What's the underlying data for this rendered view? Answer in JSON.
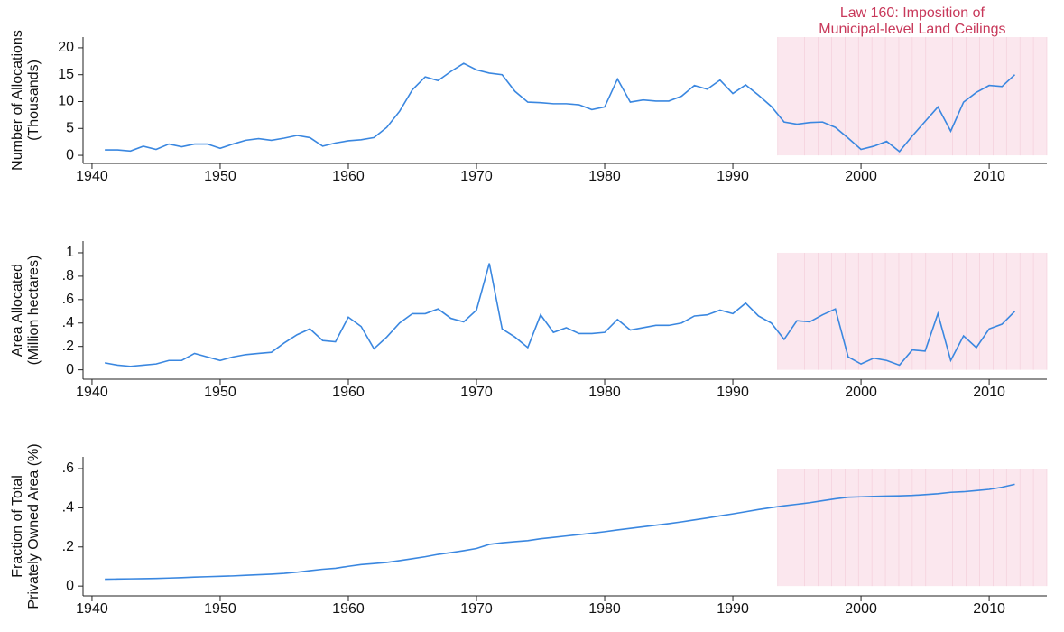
{
  "chart_data": [
    {
      "type": "line",
      "ylabel": [
        "Number of Allocations",
        "(Thousands)"
      ],
      "annotation": [
        "Law 160: Imposition of",
        "Municipal-level Land Ceilings"
      ],
      "x": [
        1941,
        1942,
        1943,
        1944,
        1945,
        1946,
        1947,
        1948,
        1949,
        1950,
        1951,
        1952,
        1953,
        1954,
        1955,
        1956,
        1957,
        1958,
        1959,
        1960,
        1961,
        1962,
        1963,
        1964,
        1965,
        1966,
        1967,
        1968,
        1969,
        1970,
        1971,
        1972,
        1973,
        1974,
        1975,
        1976,
        1977,
        1978,
        1979,
        1980,
        1981,
        1982,
        1983,
        1984,
        1985,
        1986,
        1987,
        1988,
        1989,
        1990,
        1991,
        1992,
        1993,
        1994,
        1995,
        1996,
        1997,
        1998,
        1999,
        2000,
        2001,
        2002,
        2003,
        2004,
        2005,
        2006,
        2007,
        2008,
        2009,
        2010,
        2011,
        2012
      ],
      "values": [
        1.0,
        1.0,
        0.8,
        1.7,
        1.1,
        2.1,
        1.6,
        2.1,
        2.1,
        1.3,
        2.1,
        2.8,
        3.1,
        2.8,
        3.2,
        3.7,
        3.3,
        1.7,
        2.3,
        2.7,
        2.9,
        3.3,
        5.2,
        8.2,
        12.2,
        14.6,
        13.9,
        15.6,
        17.1,
        15.9,
        15.3,
        15.0,
        11.9,
        9.9,
        9.8,
        9.6,
        9.6,
        9.4,
        8.5,
        9.0,
        14.2,
        9.9,
        10.3,
        10.1,
        10.1,
        11.0,
        13.0,
        12.3,
        14.0,
        11.5,
        13.1,
        11.2,
        9.1,
        6.2,
        5.8,
        6.1,
        6.2,
        5.2,
        3.2,
        1.1,
        1.7,
        2.6,
        0.7,
        3.6,
        6.3,
        9.0,
        4.5,
        9.9,
        11.7,
        13.0,
        12.8,
        15.0
      ],
      "color": "#3a87e0",
      "xlim": [
        1939.3,
        2014.5
      ],
      "xticks": [
        1940,
        1950,
        1960,
        1970,
        1980,
        1990,
        2000,
        2010
      ],
      "ylim": [
        -1.5,
        22
      ],
      "yticks": [
        0,
        5,
        10,
        15,
        20
      ],
      "shade": {
        "x": [
          1993.5,
          2014.5
        ],
        "y": [
          0,
          22
        ],
        "color": "#f9dfe8"
      }
    },
    {
      "type": "line",
      "ylabel": [
        "Area Allocated",
        "(Million hectares)"
      ],
      "x": [
        1941,
        1942,
        1943,
        1944,
        1945,
        1946,
        1947,
        1948,
        1949,
        1950,
        1951,
        1952,
        1953,
        1954,
        1955,
        1956,
        1957,
        1958,
        1959,
        1960,
        1961,
        1962,
        1963,
        1964,
        1965,
        1966,
        1967,
        1968,
        1969,
        1970,
        1971,
        1972,
        1973,
        1974,
        1975,
        1976,
        1977,
        1978,
        1979,
        1980,
        1981,
        1982,
        1983,
        1984,
        1985,
        1986,
        1987,
        1988,
        1989,
        1990,
        1991,
        1992,
        1993,
        1994,
        1995,
        1996,
        1997,
        1998,
        1999,
        2000,
        2001,
        2002,
        2003,
        2004,
        2005,
        2006,
        2007,
        2008,
        2009,
        2010,
        2011,
        2012
      ],
      "values": [
        0.06,
        0.04,
        0.03,
        0.04,
        0.05,
        0.08,
        0.08,
        0.14,
        0.11,
        0.08,
        0.11,
        0.13,
        0.14,
        0.15,
        0.23,
        0.3,
        0.35,
        0.25,
        0.24,
        0.45,
        0.37,
        0.18,
        0.28,
        0.4,
        0.48,
        0.48,
        0.52,
        0.44,
        0.41,
        0.51,
        0.91,
        0.35,
        0.28,
        0.19,
        0.47,
        0.32,
        0.36,
        0.31,
        0.31,
        0.32,
        0.43,
        0.34,
        0.36,
        0.38,
        0.38,
        0.4,
        0.46,
        0.47,
        0.51,
        0.48,
        0.57,
        0.46,
        0.4,
        0.26,
        0.42,
        0.41,
        0.47,
        0.52,
        0.11,
        0.05,
        0.1,
        0.08,
        0.04,
        0.17,
        0.16,
        0.48,
        0.08,
        0.29,
        0.19,
        0.35,
        0.39,
        0.5
      ],
      "color": "#3a87e0",
      "xlim": [
        1939.3,
        2014.5
      ],
      "xticks": [
        1940,
        1950,
        1960,
        1970,
        1980,
        1990,
        2000,
        2010
      ],
      "ylim": [
        -0.08,
        1.1
      ],
      "yticks": [
        0,
        {
          "value": 0.2,
          "label": ".2"
        },
        {
          "value": 0.4,
          "label": ".4"
        },
        {
          "value": 0.6,
          "label": ".6"
        },
        {
          "value": 0.8,
          "label": ".8"
        },
        1
      ],
      "shade": {
        "x": [
          1993.5,
          2014.5
        ],
        "y": [
          0,
          1
        ],
        "color": "#f9dfe8"
      }
    },
    {
      "type": "line",
      "ylabel": [
        "Fraction of Total",
        "Privately Owned Area (%)"
      ],
      "x": [
        1941,
        1942,
        1943,
        1944,
        1945,
        1946,
        1947,
        1948,
        1949,
        1950,
        1951,
        1952,
        1953,
        1954,
        1955,
        1956,
        1957,
        1958,
        1959,
        1960,
        1961,
        1962,
        1963,
        1964,
        1965,
        1966,
        1967,
        1968,
        1969,
        1970,
        1971,
        1972,
        1973,
        1974,
        1975,
        1976,
        1977,
        1978,
        1979,
        1980,
        1981,
        1982,
        1983,
        1984,
        1985,
        1986,
        1987,
        1988,
        1989,
        1990,
        1991,
        1992,
        1993,
        1994,
        1995,
        1996,
        1997,
        1998,
        1999,
        2000,
        2001,
        2002,
        2003,
        2004,
        2005,
        2006,
        2007,
        2008,
        2009,
        2010,
        2011,
        2012
      ],
      "values": [
        0.035,
        0.036,
        0.037,
        0.038,
        0.039,
        0.041,
        0.043,
        0.046,
        0.048,
        0.05,
        0.052,
        0.055,
        0.058,
        0.061,
        0.065,
        0.071,
        0.079,
        0.086,
        0.091,
        0.101,
        0.11,
        0.115,
        0.121,
        0.13,
        0.14,
        0.15,
        0.162,
        0.171,
        0.181,
        0.192,
        0.213,
        0.221,
        0.227,
        0.232,
        0.242,
        0.249,
        0.256,
        0.263,
        0.27,
        0.278,
        0.287,
        0.295,
        0.303,
        0.311,
        0.319,
        0.328,
        0.338,
        0.348,
        0.359,
        0.369,
        0.38,
        0.391,
        0.401,
        0.41,
        0.418,
        0.426,
        0.436,
        0.446,
        0.454,
        0.456,
        0.458,
        0.46,
        0.461,
        0.463,
        0.467,
        0.472,
        0.479,
        0.482,
        0.488,
        0.494,
        0.505,
        0.52
      ],
      "color": "#3a87e0",
      "xlim": [
        1939.3,
        2014.5
      ],
      "xticks": [
        1940,
        1950,
        1960,
        1970,
        1980,
        1990,
        2000,
        2010
      ],
      "ylim": [
        -0.05,
        0.66
      ],
      "yticks": [
        0,
        {
          "value": 0.2,
          "label": ".2"
        },
        {
          "value": 0.4,
          "label": ".4"
        },
        {
          "value": 0.6,
          "label": ".6"
        }
      ],
      "shade": {
        "x": [
          1993.5,
          2014.5
        ],
        "y": [
          0,
          0.6
        ],
        "color": "#f9dfe8"
      }
    }
  ]
}
